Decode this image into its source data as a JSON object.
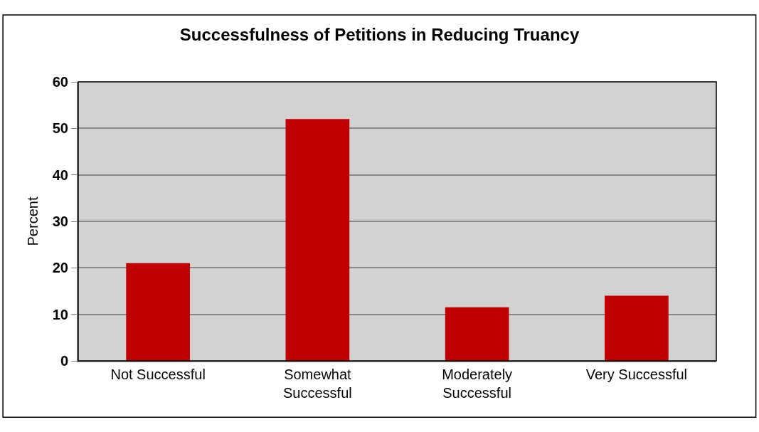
{
  "chart_data": {
    "type": "bar",
    "title": "Successfulness of Petitions in Reducing Truancy",
    "ylabel": "Percent",
    "categories": [
      "Not Successful",
      "Somewhat Successful",
      "Moderately Successful",
      "Very Successful"
    ],
    "values": [
      21,
      52,
      11.5,
      14
    ],
    "color": "#c00000",
    "ylim": [
      0,
      60
    ],
    "yticks": [
      0,
      10,
      20,
      30,
      40,
      50,
      60
    ],
    "grid": "y"
  }
}
